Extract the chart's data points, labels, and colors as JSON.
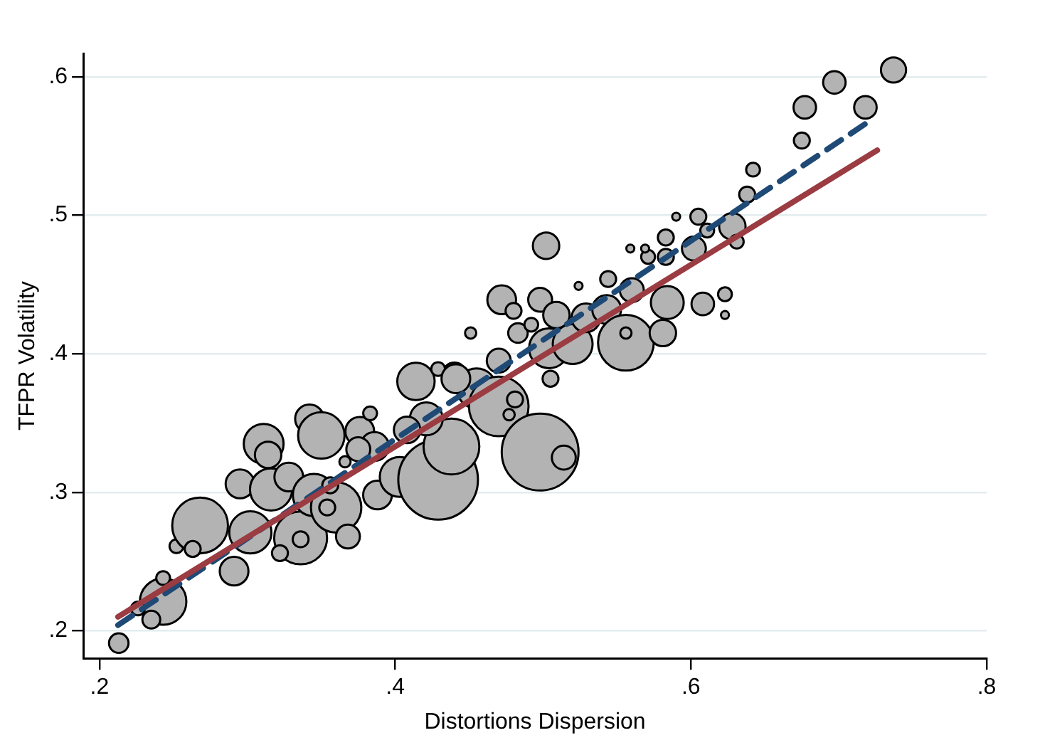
{
  "chart_data": {
    "type": "bubble",
    "xlabel": "Distortions Dispersion",
    "ylabel": "TFPR Volatility",
    "xlim": [
      0.189,
      0.8
    ],
    "ylim": [
      0.18,
      0.617
    ],
    "xticks": [
      {
        "value": 0.2,
        "label": ".2"
      },
      {
        "value": 0.4,
        "label": ".4"
      },
      {
        "value": 0.6,
        "label": ".6"
      },
      {
        "value": 0.8,
        "label": ".8"
      }
    ],
    "yticks": [
      {
        "value": 0.2,
        "label": ".2"
      },
      {
        "value": 0.3,
        "label": ".3"
      },
      {
        "value": 0.4,
        "label": ".4"
      },
      {
        "value": 0.5,
        "label": ".5"
      },
      {
        "value": 0.6,
        "label": ".6"
      }
    ],
    "grid": "y",
    "legend": false,
    "series": [
      {
        "type": "bubble",
        "color": "#b3b3b3",
        "x": [
          0.213,
          0.243,
          0.235,
          0.226,
          0.243,
          0.252,
          0.268,
          0.263,
          0.291,
          0.295,
          0.302,
          0.311,
          0.314,
          0.316,
          0.328,
          0.336,
          0.336,
          0.322,
          0.342,
          0.35,
          0.345,
          0.36,
          0.354,
          0.368,
          0.376,
          0.383,
          0.386,
          0.388,
          0.366,
          0.403,
          0.414,
          0.429,
          0.438,
          0.421,
          0.44,
          0.455,
          0.47,
          0.481,
          0.477,
          0.47,
          0.472,
          0.48,
          0.451,
          0.483,
          0.498,
          0.514,
          0.502,
          0.498,
          0.504,
          0.509,
          0.505,
          0.52,
          0.529,
          0.543,
          0.544,
          0.524,
          0.556,
          0.556,
          0.56,
          0.581,
          0.584,
          0.583,
          0.583,
          0.571,
          0.569,
          0.559,
          0.59,
          0.602,
          0.605,
          0.611,
          0.628,
          0.631,
          0.608,
          0.623,
          0.623,
          0.638,
          0.642,
          0.675,
          0.677,
          0.697,
          0.718,
          0.737,
          0.408,
          0.375,
          0.356,
          0.429,
          0.441,
          0.492
        ],
        "values": [
          0.191,
          0.221,
          0.208,
          0.216,
          0.238,
          0.261,
          0.276,
          0.259,
          0.243,
          0.306,
          0.271,
          0.335,
          0.327,
          0.302,
          0.311,
          0.267,
          0.266,
          0.256,
          0.353,
          0.341,
          0.298,
          0.289,
          0.289,
          0.268,
          0.344,
          0.357,
          0.333,
          0.298,
          0.322,
          0.311,
          0.38,
          0.309,
          0.333,
          0.353,
          0.385,
          0.375,
          0.362,
          0.367,
          0.356,
          0.395,
          0.439,
          0.431,
          0.415,
          0.415,
          0.329,
          0.325,
          0.478,
          0.439,
          0.404,
          0.428,
          0.382,
          0.407,
          0.426,
          0.432,
          0.454,
          0.449,
          0.408,
          0.415,
          0.446,
          0.415,
          0.437,
          0.484,
          0.47,
          0.47,
          0.476,
          0.476,
          0.499,
          0.476,
          0.499,
          0.489,
          0.492,
          0.481,
          0.436,
          0.443,
          0.428,
          0.515,
          0.533,
          0.554,
          0.578,
          0.596,
          0.578,
          0.605,
          0.345,
          0.331,
          0.305,
          0.389,
          0.382,
          0.421
        ],
        "sizes": [
          0.06,
          0.34,
          0.05,
          0.03,
          0.03,
          0.03,
          0.49,
          0.04,
          0.13,
          0.13,
          0.28,
          0.25,
          0.11,
          0.28,
          0.13,
          0.44,
          0.04,
          0.04,
          0.13,
          0.34,
          0.28,
          0.4,
          0.04,
          0.09,
          0.13,
          0.03,
          0.13,
          0.13,
          0.02,
          0.25,
          0.22,
          1,
          0.49,
          0.17,
          0.09,
          0.25,
          0.56,
          0.04,
          0.02,
          0.09,
          0.13,
          0.04,
          0.02,
          0.06,
          0.93,
          0.09,
          0.11,
          0.09,
          0.25,
          0.11,
          0.04,
          0.25,
          0.13,
          0.13,
          0.04,
          0.01,
          0.49,
          0.02,
          0.09,
          0.11,
          0.17,
          0.04,
          0.04,
          0.03,
          0.01,
          0.01,
          0.01,
          0.09,
          0.04,
          0.03,
          0.11,
          0.03,
          0.08,
          0.03,
          0.01,
          0.04,
          0.03,
          0.04,
          0.08,
          0.08,
          0.08,
          0.1,
          0.11,
          0.09,
          0.04,
          0.03,
          0.13,
          0.03
        ]
      },
      {
        "type": "line",
        "color": "#9b3b42",
        "line_style": "solid",
        "x": [
          0.2125,
          0.726
        ],
        "values": [
          0.21,
          0.547
        ]
      },
      {
        "type": "line",
        "color": "#1f4a76",
        "line_style": "dashed",
        "x": [
          0.2125,
          0.722
        ],
        "values": [
          0.204,
          0.569
        ]
      }
    ]
  }
}
